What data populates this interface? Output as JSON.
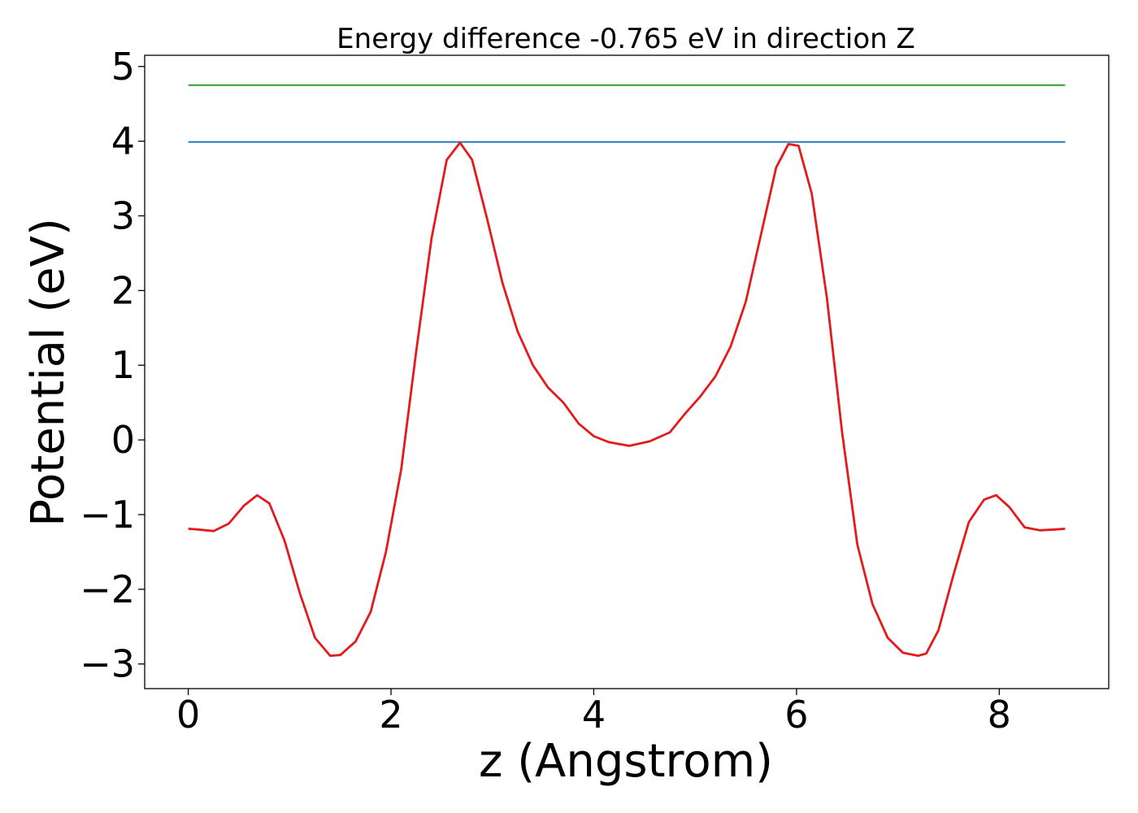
{
  "chart_data": {
    "type": "line",
    "title": "Energy difference -0.765 eV in direction Z",
    "xlabel": "z (Angstrom)",
    "ylabel": "Potential (eV)",
    "xlim": [
      -0.43,
      9.08
    ],
    "ylim": [
      -3.33,
      5.15
    ],
    "xticks": [
      0,
      2,
      4,
      6,
      8
    ],
    "yticks": [
      -3,
      -2,
      -1,
      0,
      1,
      2,
      3,
      4,
      5
    ],
    "xtick_labels": [
      "0",
      "2",
      "4",
      "6",
      "8"
    ],
    "ytick_labels": [
      "−3",
      "−2",
      "−1",
      "0",
      "1",
      "2",
      "3",
      "4",
      "5"
    ],
    "grid": false,
    "legend": "none",
    "series": [
      {
        "color": "#2ca02c",
        "x": [
          0,
          8.65
        ],
        "y": [
          4.75,
          4.75
        ]
      },
      {
        "color": "#1f77b4",
        "x": [
          0,
          8.65
        ],
        "y": [
          3.99,
          3.99
        ]
      },
      {
        "color": "#e41a1c",
        "x": [
          0,
          0.1,
          0.25,
          0.4,
          0.55,
          0.68,
          0.8,
          0.95,
          1.1,
          1.25,
          1.4,
          1.5,
          1.65,
          1.8,
          1.95,
          2.1,
          2.25,
          2.4,
          2.55,
          2.68,
          2.8,
          2.95,
          3.1,
          3.25,
          3.4,
          3.55,
          3.7,
          3.85,
          4.0,
          4.15,
          4.35,
          4.55,
          4.75,
          4.9,
          5.05,
          5.2,
          5.35,
          5.5,
          5.65,
          5.8,
          5.92,
          6.02,
          6.15,
          6.3,
          6.45,
          6.6,
          6.75,
          6.9,
          7.05,
          7.2,
          7.28,
          7.4,
          7.55,
          7.7,
          7.85,
          7.97,
          8.1,
          8.25,
          8.4,
          8.55,
          8.65
        ],
        "y": [
          -1.19,
          -1.2,
          -1.22,
          -1.12,
          -0.88,
          -0.74,
          -0.85,
          -1.35,
          -2.05,
          -2.65,
          -2.89,
          -2.88,
          -2.7,
          -2.3,
          -1.5,
          -0.4,
          1.2,
          2.7,
          3.75,
          3.98,
          3.75,
          2.95,
          2.1,
          1.45,
          1.0,
          0.7,
          0.5,
          0.22,
          0.05,
          -0.03,
          -0.08,
          -0.02,
          0.1,
          0.35,
          0.58,
          0.85,
          1.25,
          1.85,
          2.75,
          3.65,
          3.96,
          3.94,
          3.3,
          1.9,
          0.1,
          -1.4,
          -2.2,
          -2.65,
          -2.85,
          -2.89,
          -2.86,
          -2.55,
          -1.8,
          -1.1,
          -0.8,
          -0.74,
          -0.9,
          -1.17,
          -1.21,
          -1.2,
          -1.19
        ]
      }
    ]
  }
}
